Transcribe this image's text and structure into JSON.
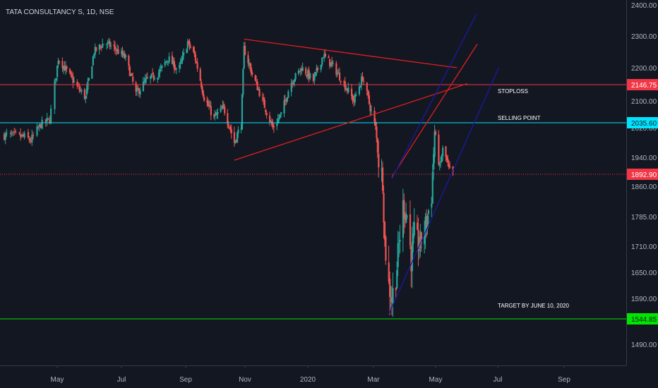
{
  "title": "TATA CONSULTANCY S, 1D, NSE",
  "colors": {
    "background": "#131722",
    "up": "#26a69a",
    "down": "#ef5350",
    "grid": "#1c2030",
    "axis_text": "#b2b5be",
    "stoploss_line": "#f23645",
    "selling_line": "#00e5ff",
    "current_line": "#f23645",
    "target_line": "#00e600",
    "trendline_red": "#e01e1e",
    "trendline_blue": "#1a1aa0"
  },
  "chart_data": {
    "type": "candlestick",
    "x_ticks": [
      "May",
      "Jul",
      "Sep",
      "Nov",
      "2020",
      "Mar",
      "May",
      "Jul",
      "Sep"
    ],
    "y_ticks": [
      "2400.00",
      "2300.00",
      "2200.00",
      "2100.00",
      "1940.00",
      "1860.00",
      "1785.00",
      "1710.00",
      "1650.00",
      "1590.00",
      "1490.00"
    ],
    "grid": false,
    "price_scale_side": "right",
    "horizontal_levels": [
      {
        "label": "STOPLOSS",
        "value": 2146.75,
        "tag": "2146.75",
        "style": "solid",
        "color_key": "stoploss_line"
      },
      {
        "label": "SELLING POINT",
        "value": 2035.6,
        "tag": "2035.60",
        "style": "solid",
        "color_key": "selling_line"
      },
      {
        "label": "",
        "value": 1892.9,
        "tag": "1892.90",
        "style": "dotted",
        "color_key": "current_line"
      },
      {
        "label": "TARGET BY JUNE 10, 2020",
        "value": 1544.85,
        "tag": "1544.85",
        "style": "solid",
        "color_key": "target_line"
      }
    ],
    "hidden_tick_behind_selling": "2020.00",
    "trendlines": [
      {
        "name": "triangle-top",
        "color_key": "trendline_red",
        "from": {
          "x": "2019-10-31",
          "y": 2290
        },
        "to": {
          "x": "2020-05-22",
          "y": 2200
        }
      },
      {
        "name": "triangle-bottom",
        "color_key": "trendline_red",
        "from": {
          "x": "2019-10-21",
          "y": 1932
        },
        "to": {
          "x": "2020-06-01",
          "y": 2150
        }
      },
      {
        "name": "red-channel",
        "color_key": "trendline_red",
        "from": {
          "x": "2020-03-19",
          "y": 1885
        },
        "to": {
          "x": "2020-06-11",
          "y": 2275
        }
      },
      {
        "name": "blue-upper",
        "color_key": "trendline_blue",
        "from": {
          "x": "2020-03-19",
          "y": 1880
        },
        "to": {
          "x": "2020-06-10",
          "y": 2430
        }
      },
      {
        "name": "blue-lower",
        "color_key": "trendline_blue",
        "from": {
          "x": "2020-03-16",
          "y": 1555
        },
        "to": {
          "x": "2020-07-02",
          "y": 2200
        }
      }
    ],
    "price_path": [
      [
        "2019-03-20",
        2000
      ],
      [
        "2019-04-05",
        1995
      ],
      [
        "2019-04-10",
        1985
      ],
      [
        "2019-04-18",
        2030
      ],
      [
        "2019-04-25",
        2045
      ],
      [
        "2019-05-02",
        2230
      ],
      [
        "2019-05-10",
        2190
      ],
      [
        "2019-05-20",
        2140
      ],
      [
        "2019-05-28",
        2110
      ],
      [
        "2019-06-05",
        2250
      ],
      [
        "2019-06-15",
        2280
      ],
      [
        "2019-06-25",
        2260
      ],
      [
        "2019-07-05",
        2230
      ],
      [
        "2019-07-15",
        2120
      ],
      [
        "2019-07-25",
        2160
      ],
      [
        "2019-08-05",
        2180
      ],
      [
        "2019-08-15",
        2230
      ],
      [
        "2019-08-25",
        2190
      ],
      [
        "2019-09-03",
        2280
      ],
      [
        "2019-09-10",
        2240
      ],
      [
        "2019-09-20",
        2110
      ],
      [
        "2019-09-30",
        2050
      ],
      [
        "2019-10-10",
        2080
      ],
      [
        "2019-10-21",
        1980
      ],
      [
        "2019-10-28",
        2030
      ],
      [
        "2019-10-31",
        2260
      ],
      [
        "2019-11-08",
        2180
      ],
      [
        "2019-11-18",
        2100
      ],
      [
        "2019-11-28",
        2020
      ],
      [
        "2019-12-06",
        2060
      ],
      [
        "2019-12-15",
        2150
      ],
      [
        "2019-12-26",
        2200
      ],
      [
        "2020-01-06",
        2160
      ],
      [
        "2020-01-15",
        2240
      ],
      [
        "2020-01-25",
        2200
      ],
      [
        "2020-02-03",
        2150
      ],
      [
        "2020-02-12",
        2100
      ],
      [
        "2020-02-20",
        2170
      ],
      [
        "2020-02-27",
        2080
      ],
      [
        "2020-03-03",
        2020
      ],
      [
        "2020-03-06",
        1930
      ],
      [
        "2020-03-10",
        1880
      ],
      [
        "2020-03-12",
        1720
      ],
      [
        "2020-03-16",
        1620
      ],
      [
        "2020-03-19",
        1590
      ],
      [
        "2020-03-23",
        1640
      ],
      [
        "2020-03-30",
        1810
      ],
      [
        "2020-04-03",
        1790
      ],
      [
        "2020-04-07",
        1680
      ],
      [
        "2020-04-10",
        1740
      ],
      [
        "2020-04-15",
        1710
      ],
      [
        "2020-04-21",
        1760
      ],
      [
        "2020-04-27",
        1840
      ],
      [
        "2020-04-30",
        2010
      ],
      [
        "2020-05-05",
        1910
      ],
      [
        "2020-05-08",
        1960
      ],
      [
        "2020-05-11",
        1940
      ],
      [
        "2020-05-14",
        1905
      ],
      [
        "2020-05-18",
        1893
      ]
    ]
  }
}
